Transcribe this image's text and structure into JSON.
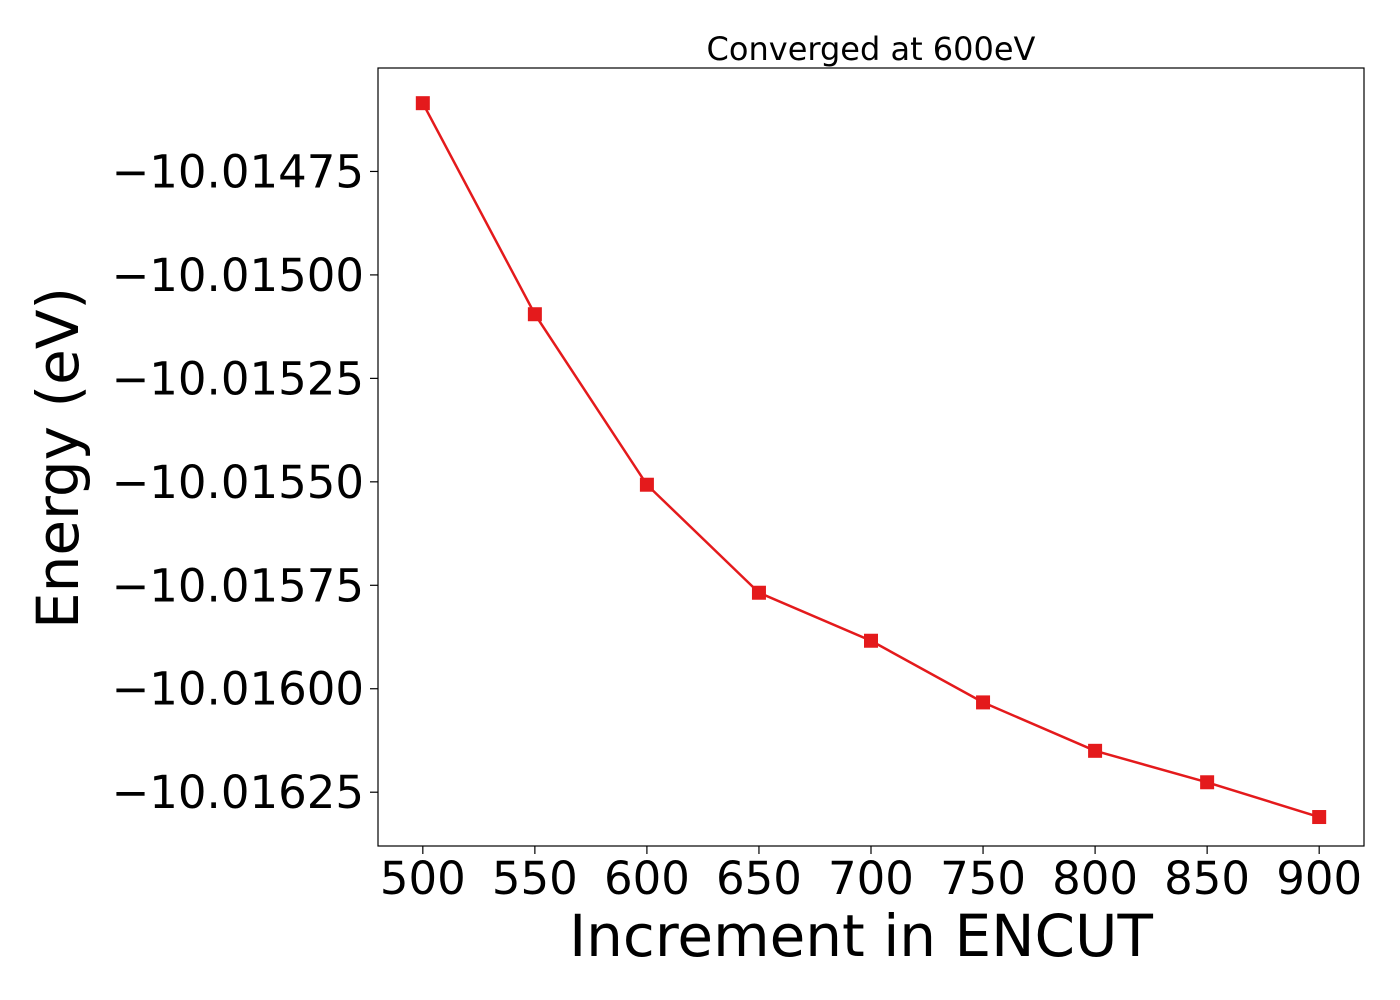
{
  "chart_data": {
    "type": "line",
    "title": "Converged at 600eV",
    "xlabel": "Increment in ENCUT",
    "ylabel": "Energy (eV)",
    "x": [
      500,
      550,
      600,
      650,
      700,
      750,
      800,
      850,
      900
    ],
    "xticks": [
      "500",
      "550",
      "600",
      "650",
      "700",
      "750",
      "800",
      "850",
      "900"
    ],
    "yticks": [
      -10.01475,
      -10.015,
      -10.01525,
      -10.0155,
      -10.01575,
      -10.016,
      -10.01625
    ],
    "ytick_labels": [
      "−10.01475",
      "−10.01500",
      "−10.01525",
      "−10.01550",
      "−10.01575",
      "−10.01600",
      "−10.01625"
    ],
    "xlim": [
      480,
      920
    ],
    "ylim": [
      -10.01638,
      -10.0145
    ],
    "grid": false,
    "series": [
      {
        "values": [
          -10.014585,
          -10.015095,
          -10.015507,
          -10.015768,
          -10.015884,
          -10.016033,
          -10.01615,
          -10.016226,
          -10.01631
        ],
        "color": "#e41a1c",
        "marker": "square"
      }
    ]
  }
}
